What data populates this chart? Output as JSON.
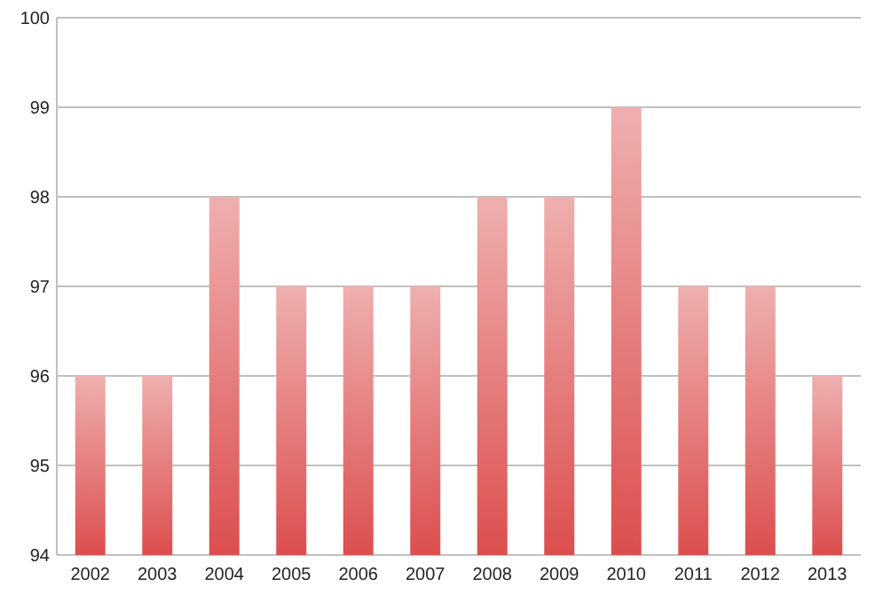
{
  "chart_data": {
    "type": "bar",
    "categories": [
      "2002",
      "2003",
      "2004",
      "2005",
      "2006",
      "2007",
      "2008",
      "2009",
      "2010",
      "2011",
      "2012",
      "2013"
    ],
    "values": [
      96,
      96,
      98,
      97,
      97,
      97,
      98,
      98,
      99,
      97,
      97,
      96
    ],
    "color": "#dc4e4e",
    "ylim": [
      94,
      100
    ],
    "yticks": [
      94,
      95,
      96,
      97,
      98,
      99,
      100
    ],
    "grid": "y"
  }
}
